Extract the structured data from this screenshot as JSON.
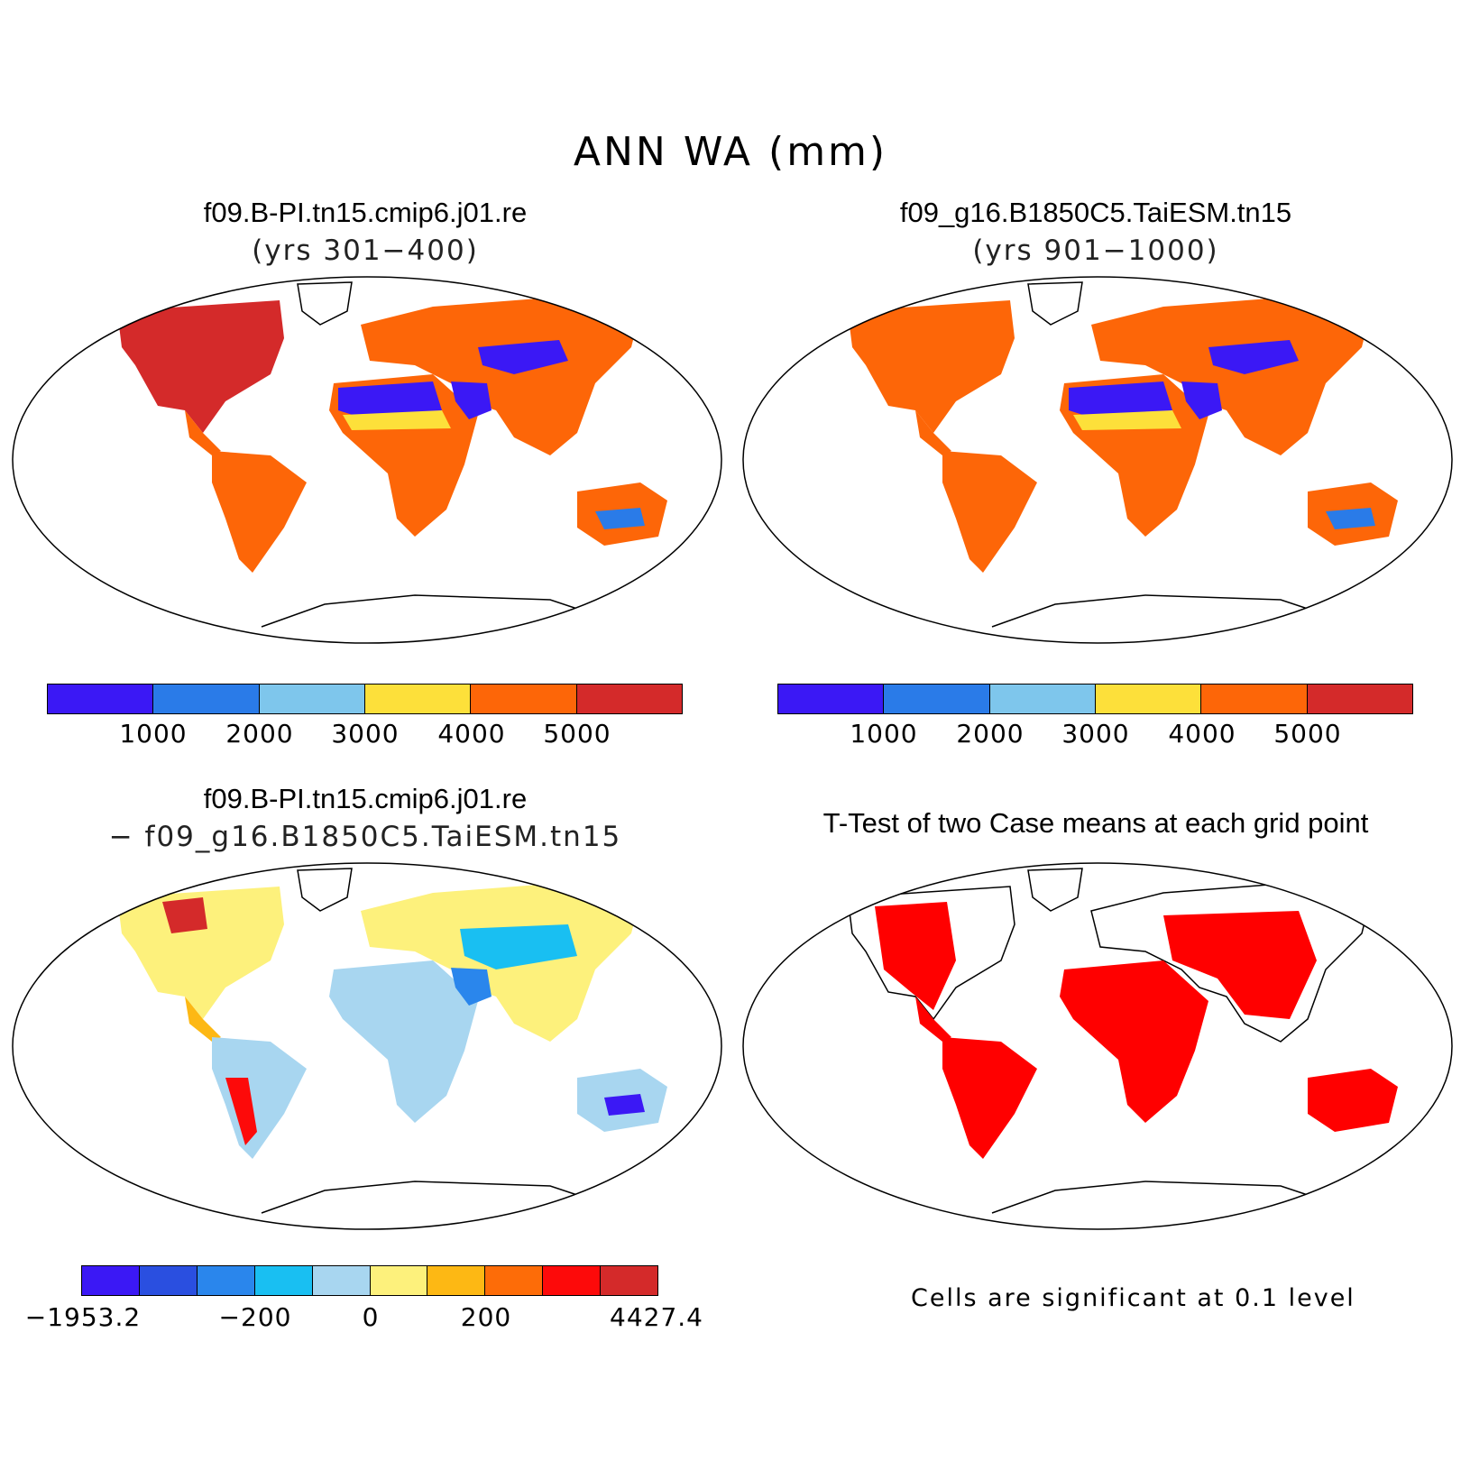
{
  "figure": {
    "title": "ANN WA (mm)"
  },
  "panels": [
    {
      "case": "f09.B-PI.tn15.cmip6.j01.re",
      "subtitle": "(yrs 301−400)",
      "colorbar": {
        "colors": [
          "#3b18f5",
          "#2a7be8",
          "#7ec6ec",
          "#fde03a",
          "#fd6608",
          "#d42a2a"
        ],
        "ticks": [
          "1000",
          "2000",
          "3000",
          "4000",
          "5000"
        ]
      }
    },
    {
      "case": "f09_g16.B1850C5.TaiESM.tn15",
      "subtitle": "(yrs 901−1000)",
      "colorbar": {
        "colors": [
          "#3b18f5",
          "#2a7be8",
          "#7ec6ec",
          "#fde03a",
          "#fd6608",
          "#d42a2a"
        ],
        "ticks": [
          "1000",
          "2000",
          "3000",
          "4000",
          "5000"
        ]
      }
    },
    {
      "case": "f09.B-PI.tn15.cmip6.j01.re",
      "subtitle": "− f09_g16.B1850C5.TaiESM.tn15",
      "colorbar": {
        "colors": [
          "#3b18f5",
          "#2a4fe0",
          "#2a86ec",
          "#19bff2",
          "#a8d6f0",
          "#fdf17c",
          "#fdb814",
          "#fd6c08",
          "#fd0a0a",
          "#d42a2a"
        ],
        "ticks": [
          "−1953.2",
          "−200",
          "0",
          "200",
          "4427.4"
        ]
      }
    },
    {
      "title": "T-Test of two Case means at each grid point",
      "note": "Cells are significant at 0.1 level",
      "color": "#ff0000"
    }
  ]
}
